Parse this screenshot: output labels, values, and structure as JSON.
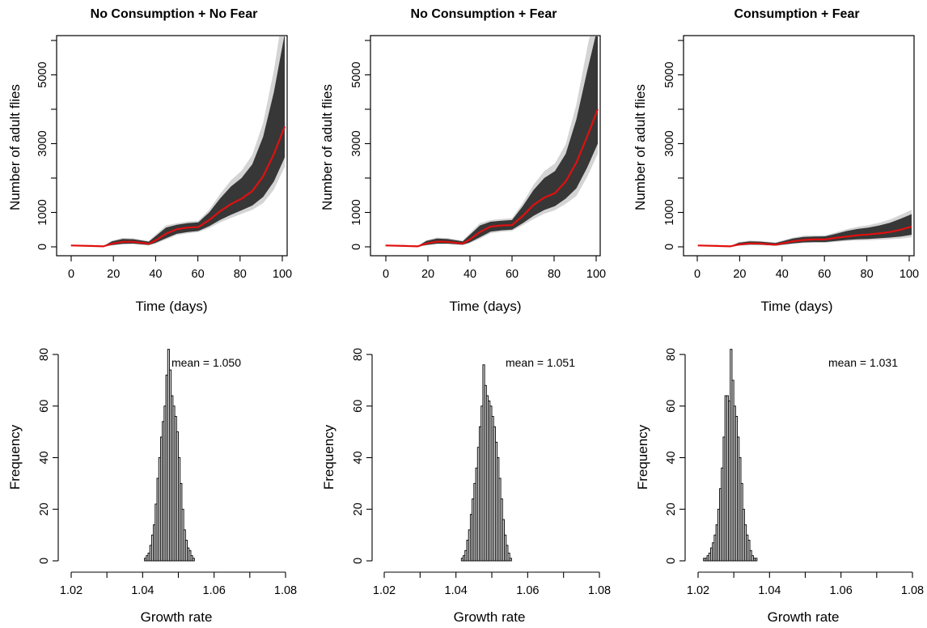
{
  "chart_data": [
    {
      "type": "line",
      "title": "No Consumption + No Fear",
      "xlabel": "Time (days)",
      "ylabel": "Number of adult flies",
      "xlim": [
        0,
        100
      ],
      "ylim": [
        0,
        6300
      ],
      "xticks": [
        "0",
        "20",
        "40",
        "60",
        "80",
        "100"
      ],
      "yticks": [
        "0",
        "1000",
        "3000",
        "5000"
      ],
      "x": [
        1,
        10,
        16,
        20,
        25,
        30,
        37,
        40,
        45,
        50,
        55,
        60,
        65,
        70,
        75,
        80,
        85,
        90,
        95,
        100
      ],
      "mean_series": [
        40,
        25,
        15,
        90,
        145,
        145,
        90,
        180,
        380,
        510,
        560,
        575,
        780,
        1030,
        1240,
        1400,
        1620,
        2050,
        2700,
        3500
      ],
      "trajectory_upper": [
        45,
        30,
        20,
        160,
        230,
        220,
        150,
        300,
        560,
        640,
        690,
        710,
        1000,
        1400,
        1750,
        2000,
        2400,
        3200,
        4500,
        6200
      ],
      "trajectory_lower": [
        35,
        20,
        10,
        50,
        90,
        95,
        55,
        110,
        250,
        380,
        430,
        460,
        600,
        780,
        930,
        1060,
        1200,
        1450,
        1900,
        2600
      ],
      "grid": false
    },
    {
      "type": "line",
      "title": "No Consumption + Fear",
      "xlabel": "Time (days)",
      "ylabel": "Number of adult flies",
      "xlim": [
        0,
        100
      ],
      "ylim": [
        0,
        6300
      ],
      "xticks": [
        "0",
        "20",
        "40",
        "60",
        "80",
        "100"
      ],
      "yticks": [
        "0",
        "1000",
        "3000",
        "5000"
      ],
      "x": [
        1,
        10,
        16,
        20,
        25,
        30,
        37,
        40,
        45,
        50,
        55,
        60,
        65,
        70,
        75,
        80,
        85,
        90,
        95,
        100
      ],
      "mean_series": [
        40,
        25,
        15,
        100,
        150,
        145,
        95,
        200,
        430,
        590,
        620,
        630,
        900,
        1220,
        1430,
        1560,
        1900,
        2450,
        3200,
        4000
      ],
      "trajectory_upper": [
        45,
        30,
        20,
        170,
        240,
        225,
        160,
        330,
        620,
        730,
        760,
        780,
        1180,
        1650,
        2000,
        2200,
        2700,
        3700,
        5100,
        6400
      ],
      "trajectory_lower": [
        35,
        20,
        10,
        55,
        95,
        95,
        60,
        120,
        280,
        440,
        480,
        500,
        690,
        900,
        1070,
        1180,
        1400,
        1700,
        2300,
        3000
      ],
      "grid": false
    },
    {
      "type": "line",
      "title": "Consumption + Fear",
      "xlabel": "Time (days)",
      "ylabel": "Number of adult flies",
      "xlim": [
        0,
        100
      ],
      "ylim": [
        0,
        6300
      ],
      "xticks": [
        "0",
        "20",
        "40",
        "60",
        "80",
        "100"
      ],
      "yticks": [
        "0",
        "1000",
        "3000",
        "5000"
      ],
      "x": [
        1,
        10,
        16,
        20,
        25,
        30,
        37,
        40,
        45,
        50,
        55,
        60,
        65,
        70,
        75,
        80,
        85,
        90,
        95,
        100
      ],
      "mean_series": [
        40,
        25,
        15,
        70,
        100,
        95,
        60,
        100,
        160,
        200,
        215,
        215,
        260,
        300,
        340,
        360,
        390,
        430,
        500,
        590
      ],
      "trajectory_upper": [
        45,
        30,
        20,
        120,
        160,
        150,
        110,
        160,
        240,
        290,
        300,
        305,
        380,
        460,
        520,
        560,
        620,
        700,
        820,
        950
      ],
      "trajectory_lower": [
        35,
        20,
        10,
        40,
        65,
        60,
        35,
        60,
        100,
        130,
        140,
        140,
        170,
        200,
        220,
        230,
        250,
        270,
        300,
        350
      ],
      "grid": false
    },
    {
      "type": "bar",
      "xlabel": "Growth rate",
      "ylabel": "Frequency",
      "xlim": [
        1.02,
        1.08
      ],
      "ylim": [
        0,
        82
      ],
      "xticks": [
        "1.02",
        "1.04",
        "1.06",
        "1.08"
      ],
      "yticks": [
        "0",
        "20",
        "40",
        "60",
        "80"
      ],
      "annotation": "mean = 1.050",
      "bin_width": 0.0005,
      "bin_start": 1.0405,
      "values": [
        1,
        2,
        3,
        6,
        10,
        14,
        22,
        32,
        40,
        48,
        54,
        60,
        72,
        82,
        74,
        64,
        60,
        56,
        50,
        40,
        30,
        20,
        12,
        8,
        5,
        4,
        2,
        1
      ]
    },
    {
      "type": "bar",
      "xlabel": "Growth rate",
      "ylabel": "Frequency",
      "xlim": [
        1.02,
        1.08
      ],
      "ylim": [
        0,
        82
      ],
      "xticks": [
        "1.02",
        "1.04",
        "1.06",
        "1.08"
      ],
      "yticks": [
        "0",
        "20",
        "40",
        "60",
        "80"
      ],
      "annotation": "mean = 1.051",
      "bin_width": 0.0005,
      "bin_start": 1.0415,
      "values": [
        1,
        2,
        4,
        8,
        12,
        18,
        24,
        30,
        36,
        44,
        52,
        60,
        76,
        68,
        64,
        62,
        60,
        56,
        52,
        46,
        40,
        32,
        24,
        16,
        10,
        6,
        3,
        1
      ]
    },
    {
      "type": "bar",
      "xlabel": "Growth rate",
      "ylabel": "Frequency",
      "xlim": [
        1.02,
        1.08
      ],
      "ylim": [
        0,
        82
      ],
      "xticks": [
        "1.02",
        "1.04",
        "1.06",
        "1.08"
      ],
      "yticks": [
        "0",
        "20",
        "40",
        "60",
        "80"
      ],
      "annotation": "mean = 1.031",
      "bin_width": 0.0005,
      "bin_start": 1.0215,
      "values": [
        1,
        1,
        2,
        3,
        5,
        7,
        10,
        14,
        20,
        28,
        36,
        48,
        64,
        64,
        62,
        82,
        70,
        60,
        56,
        48,
        40,
        30,
        20,
        14,
        10,
        8,
        4,
        2,
        1,
        1
      ]
    }
  ]
}
